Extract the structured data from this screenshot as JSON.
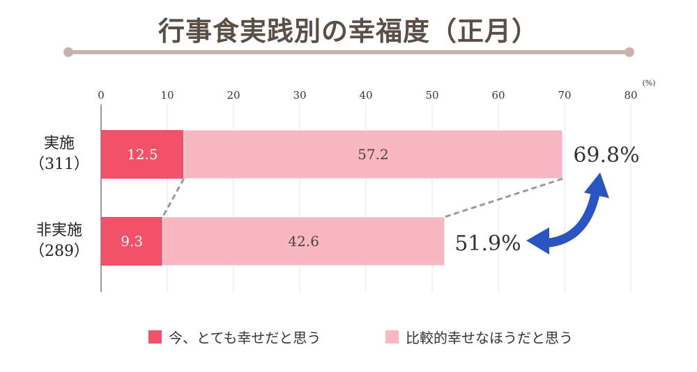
{
  "chart_data": {
    "type": "bar",
    "orientation": "horizontal",
    "stacked": true,
    "title": "行事食実践別の幸福度（正月）",
    "unit": "(%)",
    "xlim": [
      0,
      80
    ],
    "ticks": [
      0,
      10,
      20,
      30,
      40,
      50,
      60,
      70,
      80
    ],
    "grid": true,
    "categories": [
      {
        "name": "実施",
        "n": "（311）"
      },
      {
        "name": "非実施",
        "n": "（289）"
      }
    ],
    "series": [
      {
        "name": "今、とても幸せだと思う",
        "color": "#f2516a",
        "values": [
          12.5,
          9.3
        ]
      },
      {
        "name": "比較的幸せなほうだと思う",
        "color": "#f9b8c1",
        "values": [
          57.2,
          42.6
        ]
      }
    ],
    "totals": [
      "69.8%",
      "51.9%"
    ],
    "legend": "bottom",
    "arrow_color": "#2a55c0"
  }
}
